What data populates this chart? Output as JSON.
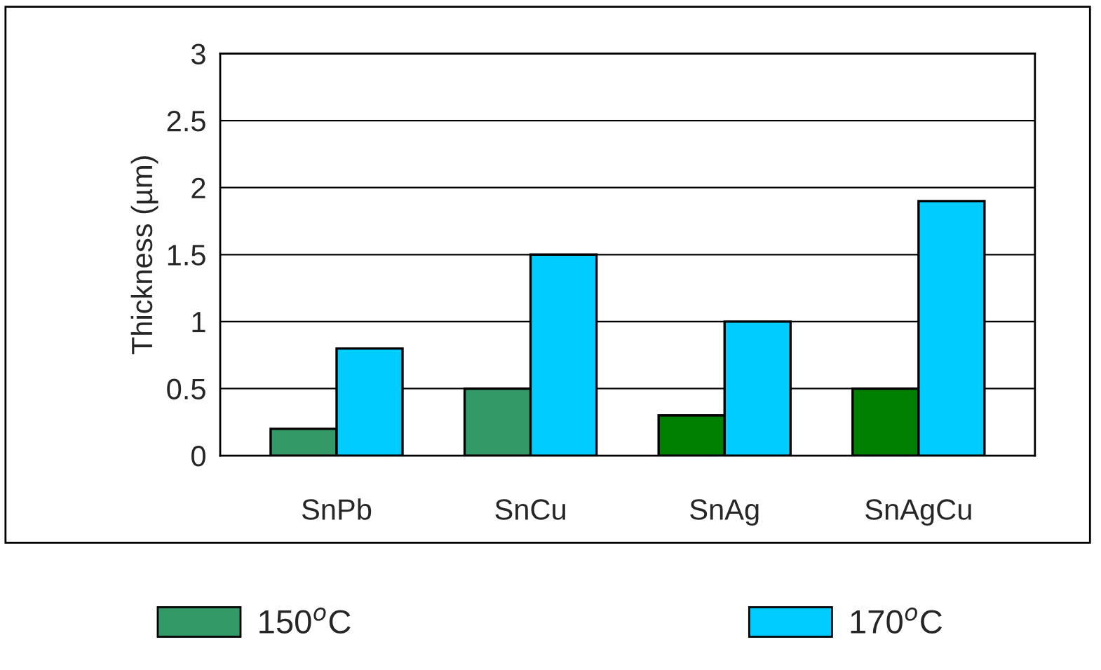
{
  "chart_data": {
    "type": "bar",
    "ylabel": "Thickness (µm)",
    "categories": [
      "SnPb",
      "SnCu",
      "SnAg",
      "SnAgCu"
    ],
    "series": [
      {
        "name": "150$^{o}$C",
        "color": "#339966",
        "colors": [
          "#339966",
          "#339966",
          "#008000",
          "#008000"
        ],
        "values": [
          0.2,
          0.5,
          0.3,
          0.5
        ]
      },
      {
        "name": "170$^{o}$C",
        "color": "#00ccff",
        "values": [
          0.8,
          1.5,
          1.0,
          1.9
        ]
      }
    ],
    "ylim": [
      0,
      3
    ],
    "yticks": [
      0,
      0.5,
      1,
      1.5,
      2,
      2.5,
      3
    ],
    "grid": "y",
    "legend": "bottom"
  }
}
